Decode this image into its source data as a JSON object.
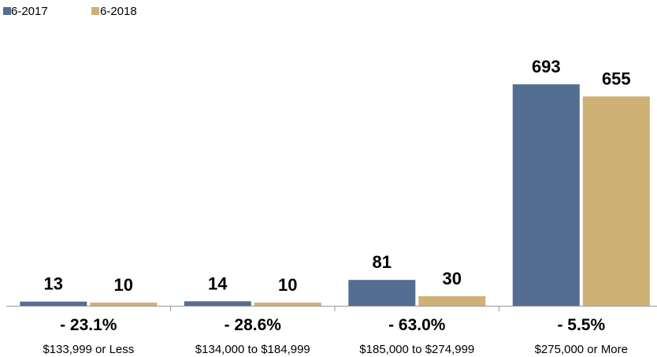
{
  "chart_data": {
    "type": "bar",
    "title": "",
    "xlabel": "",
    "ylabel": "",
    "categories": [
      "$133,999 or Less",
      "$134,000 to $184,999",
      "$185,000 to $274,999",
      "$275,000 or More"
    ],
    "series": [
      {
        "name": "6-2017",
        "values": [
          13,
          14,
          81,
          693
        ],
        "color": "#546e91"
      },
      {
        "name": "6-2018",
        "values": [
          10,
          10,
          30,
          655
        ],
        "color": "#cfb075"
      }
    ],
    "change_labels": [
      "- 23.1%",
      "- 28.6%",
      "- 63.0%",
      "- 5.5%"
    ],
    "ylim": [
      0,
      760
    ],
    "grid": false,
    "legend_position": "top-left",
    "data_labels": true
  }
}
